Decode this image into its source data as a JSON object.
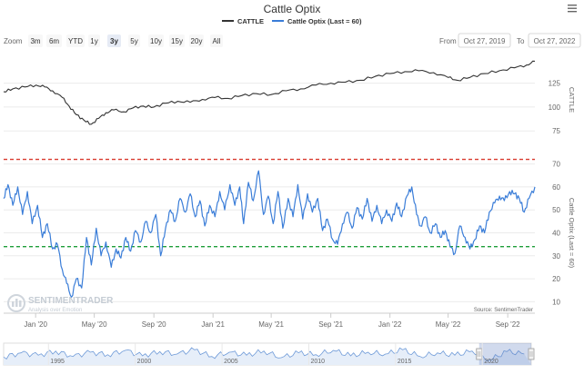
{
  "chart_data": {
    "type": "line",
    "title": "Cattle Optix",
    "legend": [
      {
        "name": "CATTLE",
        "color": "#333333"
      },
      {
        "name": "Cattle Optix (Last = 60)",
        "color": "#3a7dd8"
      }
    ],
    "zoom": {
      "label": "Zoom",
      "buttons": [
        "3m",
        "6m",
        "YTD",
        "1y",
        "3y",
        "5y",
        "10y",
        "15y",
        "20y",
        "All"
      ],
      "selected": "3y"
    },
    "range": {
      "from_label": "From",
      "from": "Oct 27, 2019",
      "to_label": "To",
      "to": "Oct 27, 2022"
    },
    "menu_icon": "hamburger-menu-icon",
    "x_ticks": [
      "Jan '20",
      "May '20",
      "Sep '20",
      "Jan '21",
      "May '21",
      "Sep '21",
      "Jan '22",
      "May '22",
      "Sep '22"
    ],
    "panels": [
      {
        "name": "CATTLE",
        "ylabel": "CATTLE",
        "yticks": [
          75,
          100,
          125
        ],
        "ylim": [
          60,
          155
        ],
        "color": "#333333",
        "series": [
          {
            "x": "2019-10-27",
            "y": 116
          },
          {
            "x": "2019-11-15",
            "y": 119
          },
          {
            "x": "2019-12-10",
            "y": 121
          },
          {
            "x": "2020-01-02",
            "y": 123
          },
          {
            "x": "2020-01-20",
            "y": 121
          },
          {
            "x": "2020-02-05",
            "y": 117
          },
          {
            "x": "2020-02-25",
            "y": 110
          },
          {
            "x": "2020-03-10",
            "y": 101
          },
          {
            "x": "2020-03-25",
            "y": 92
          },
          {
            "x": "2020-04-10",
            "y": 86
          },
          {
            "x": "2020-04-25",
            "y": 82
          },
          {
            "x": "2020-05-10",
            "y": 88
          },
          {
            "x": "2020-05-25",
            "y": 94
          },
          {
            "x": "2020-06-10",
            "y": 97
          },
          {
            "x": "2020-07-01",
            "y": 95
          },
          {
            "x": "2020-07-20",
            "y": 99
          },
          {
            "x": "2020-08-10",
            "y": 101
          },
          {
            "x": "2020-09-01",
            "y": 100
          },
          {
            "x": "2020-09-25",
            "y": 104
          },
          {
            "x": "2020-10-20",
            "y": 106
          },
          {
            "x": "2020-11-15",
            "y": 105
          },
          {
            "x": "2020-12-10",
            "y": 108
          },
          {
            "x": "2021-01-05",
            "y": 110
          },
          {
            "x": "2021-02-01",
            "y": 109
          },
          {
            "x": "2021-03-01",
            "y": 112
          },
          {
            "x": "2021-04-01",
            "y": 114
          },
          {
            "x": "2021-05-01",
            "y": 113
          },
          {
            "x": "2021-06-01",
            "y": 117
          },
          {
            "x": "2021-07-01",
            "y": 119
          },
          {
            "x": "2021-08-01",
            "y": 123
          },
          {
            "x": "2021-09-01",
            "y": 125
          },
          {
            "x": "2021-10-01",
            "y": 126
          },
          {
            "x": "2021-11-01",
            "y": 128
          },
          {
            "x": "2021-12-01",
            "y": 132
          },
          {
            "x": "2022-01-01",
            "y": 135
          },
          {
            "x": "2022-02-01",
            "y": 137
          },
          {
            "x": "2022-03-01",
            "y": 138
          },
          {
            "x": "2022-04-01",
            "y": 136
          },
          {
            "x": "2022-05-01",
            "y": 131
          },
          {
            "x": "2022-05-20",
            "y": 128
          },
          {
            "x": "2022-06-15",
            "y": 131
          },
          {
            "x": "2022-07-15",
            "y": 135
          },
          {
            "x": "2022-08-15",
            "y": 138
          },
          {
            "x": "2022-09-15",
            "y": 141
          },
          {
            "x": "2022-10-10",
            "y": 144
          },
          {
            "x": "2022-10-27",
            "y": 148
          }
        ]
      },
      {
        "name": "Cattle Optix (Last = 60)",
        "ylabel": "Cattle Optix (Last = 60)",
        "yticks": [
          10,
          20,
          30,
          40,
          50,
          60,
          70
        ],
        "ylim": [
          5,
          75
        ],
        "color": "#3a7dd8",
        "reference_lines": [
          {
            "y": 72,
            "color": "#d9382c",
            "style": "dashed"
          },
          {
            "y": 34,
            "color": "#1e9e3a",
            "style": "dashed"
          }
        ],
        "series": [
          {
            "x": "2019-10-27",
            "y": 55
          },
          {
            "x": "2019-11-05",
            "y": 61
          },
          {
            "x": "2019-11-15",
            "y": 52
          },
          {
            "x": "2019-11-25",
            "y": 60
          },
          {
            "x": "2019-12-05",
            "y": 48
          },
          {
            "x": "2019-12-15",
            "y": 58
          },
          {
            "x": "2019-12-25",
            "y": 44
          },
          {
            "x": "2020-01-05",
            "y": 52
          },
          {
            "x": "2020-01-15",
            "y": 38
          },
          {
            "x": "2020-01-25",
            "y": 44
          },
          {
            "x": "2020-02-05",
            "y": 33
          },
          {
            "x": "2020-02-15",
            "y": 35
          },
          {
            "x": "2020-02-25",
            "y": 24
          },
          {
            "x": "2020-03-05",
            "y": 18
          },
          {
            "x": "2020-03-15",
            "y": 12
          },
          {
            "x": "2020-03-25",
            "y": 20
          },
          {
            "x": "2020-04-05",
            "y": 16
          },
          {
            "x": "2020-04-15",
            "y": 38
          },
          {
            "x": "2020-04-25",
            "y": 26
          },
          {
            "x": "2020-05-05",
            "y": 42
          },
          {
            "x": "2020-05-15",
            "y": 30
          },
          {
            "x": "2020-05-25",
            "y": 36
          },
          {
            "x": "2020-06-05",
            "y": 25
          },
          {
            "x": "2020-06-15",
            "y": 33
          },
          {
            "x": "2020-06-25",
            "y": 29
          },
          {
            "x": "2020-07-05",
            "y": 38
          },
          {
            "x": "2020-07-15",
            "y": 32
          },
          {
            "x": "2020-07-25",
            "y": 41
          },
          {
            "x": "2020-08-05",
            "y": 36
          },
          {
            "x": "2020-08-15",
            "y": 45
          },
          {
            "x": "2020-08-25",
            "y": 40
          },
          {
            "x": "2020-09-05",
            "y": 48
          },
          {
            "x": "2020-09-15",
            "y": 30
          },
          {
            "x": "2020-09-25",
            "y": 42
          },
          {
            "x": "2020-10-05",
            "y": 50
          },
          {
            "x": "2020-10-15",
            "y": 45
          },
          {
            "x": "2020-10-25",
            "y": 55
          },
          {
            "x": "2020-11-05",
            "y": 49
          },
          {
            "x": "2020-11-15",
            "y": 57
          },
          {
            "x": "2020-11-25",
            "y": 47
          },
          {
            "x": "2020-12-05",
            "y": 54
          },
          {
            "x": "2020-12-15",
            "y": 43
          },
          {
            "x": "2020-12-25",
            "y": 52
          },
          {
            "x": "2021-01-05",
            "y": 47
          },
          {
            "x": "2021-01-15",
            "y": 58
          },
          {
            "x": "2021-01-25",
            "y": 50
          },
          {
            "x": "2021-02-05",
            "y": 61
          },
          {
            "x": "2021-02-15",
            "y": 52
          },
          {
            "x": "2021-02-25",
            "y": 60
          },
          {
            "x": "2021-03-05",
            "y": 44
          },
          {
            "x": "2021-03-15",
            "y": 62
          },
          {
            "x": "2021-03-25",
            "y": 54
          },
          {
            "x": "2021-04-05",
            "y": 67
          },
          {
            "x": "2021-04-15",
            "y": 48
          },
          {
            "x": "2021-04-25",
            "y": 56
          },
          {
            "x": "2021-05-05",
            "y": 44
          },
          {
            "x": "2021-05-15",
            "y": 58
          },
          {
            "x": "2021-05-25",
            "y": 42
          },
          {
            "x": "2021-06-05",
            "y": 55
          },
          {
            "x": "2021-06-15",
            "y": 47
          },
          {
            "x": "2021-06-25",
            "y": 61
          },
          {
            "x": "2021-07-05",
            "y": 46
          },
          {
            "x": "2021-07-15",
            "y": 57
          },
          {
            "x": "2021-07-25",
            "y": 49
          },
          {
            "x": "2021-08-05",
            "y": 55
          },
          {
            "x": "2021-08-15",
            "y": 41
          },
          {
            "x": "2021-08-25",
            "y": 46
          },
          {
            "x": "2021-09-05",
            "y": 37
          },
          {
            "x": "2021-09-15",
            "y": 35
          },
          {
            "x": "2021-09-25",
            "y": 44
          },
          {
            "x": "2021-10-05",
            "y": 49
          },
          {
            "x": "2021-10-15",
            "y": 42
          },
          {
            "x": "2021-10-25",
            "y": 51
          },
          {
            "x": "2021-11-05",
            "y": 46
          },
          {
            "x": "2021-11-15",
            "y": 55
          },
          {
            "x": "2021-11-25",
            "y": 45
          },
          {
            "x": "2021-12-05",
            "y": 52
          },
          {
            "x": "2021-12-15",
            "y": 44
          },
          {
            "x": "2021-12-25",
            "y": 50
          },
          {
            "x": "2022-01-05",
            "y": 45
          },
          {
            "x": "2022-01-15",
            "y": 53
          },
          {
            "x": "2022-01-25",
            "y": 47
          },
          {
            "x": "2022-02-05",
            "y": 56
          },
          {
            "x": "2022-02-15",
            "y": 60
          },
          {
            "x": "2022-02-25",
            "y": 48
          },
          {
            "x": "2022-03-05",
            "y": 43
          },
          {
            "x": "2022-03-15",
            "y": 47
          },
          {
            "x": "2022-03-25",
            "y": 40
          },
          {
            "x": "2022-04-05",
            "y": 44
          },
          {
            "x": "2022-04-15",
            "y": 38
          },
          {
            "x": "2022-04-25",
            "y": 41
          },
          {
            "x": "2022-05-05",
            "y": 34
          },
          {
            "x": "2022-05-15",
            "y": 31
          },
          {
            "x": "2022-05-25",
            "y": 43
          },
          {
            "x": "2022-06-05",
            "y": 38
          },
          {
            "x": "2022-06-15",
            "y": 33
          },
          {
            "x": "2022-06-25",
            "y": 37
          },
          {
            "x": "2022-07-05",
            "y": 43
          },
          {
            "x": "2022-07-15",
            "y": 40
          },
          {
            "x": "2022-07-25",
            "y": 49
          },
          {
            "x": "2022-08-05",
            "y": 53
          },
          {
            "x": "2022-08-15",
            "y": 56
          },
          {
            "x": "2022-08-25",
            "y": 54
          },
          {
            "x": "2022-09-05",
            "y": 58
          },
          {
            "x": "2022-09-15",
            "y": 57
          },
          {
            "x": "2022-09-25",
            "y": 55
          },
          {
            "x": "2022-10-05",
            "y": 49
          },
          {
            "x": "2022-10-15",
            "y": 55
          },
          {
            "x": "2022-10-27",
            "y": 60
          }
        ]
      }
    ],
    "navigator": {
      "ticks": [
        "1995",
        "2000",
        "2005",
        "2010",
        "2015",
        "2020"
      ],
      "series": [
        {
          "x": "1992-06-01",
          "y": 45
        },
        {
          "x": "1993-06-01",
          "y": 52
        },
        {
          "x": "1994-06-01",
          "y": 48
        },
        {
          "x": "1995-06-01",
          "y": 55
        },
        {
          "x": "1996-06-01",
          "y": 46
        },
        {
          "x": "1997-06-01",
          "y": 53
        },
        {
          "x": "1998-06-01",
          "y": 49
        },
        {
          "x": "1999-06-01",
          "y": 56
        },
        {
          "x": "2000-06-01",
          "y": 47
        },
        {
          "x": "2001-06-01",
          "y": 54
        },
        {
          "x": "2002-06-01",
          "y": 50
        },
        {
          "x": "2003-06-01",
          "y": 57
        },
        {
          "x": "2004-06-01",
          "y": 46
        },
        {
          "x": "2005-06-01",
          "y": 53
        },
        {
          "x": "2006-06-01",
          "y": 48
        },
        {
          "x": "2007-06-01",
          "y": 55
        },
        {
          "x": "2008-06-01",
          "y": 44
        },
        {
          "x": "2009-06-01",
          "y": 52
        },
        {
          "x": "2010-06-01",
          "y": 49
        },
        {
          "x": "2011-06-01",
          "y": 56
        },
        {
          "x": "2012-06-01",
          "y": 47
        },
        {
          "x": "2013-06-01",
          "y": 53
        },
        {
          "x": "2014-06-01",
          "y": 50
        },
        {
          "x": "2015-06-01",
          "y": 57
        },
        {
          "x": "2016-06-01",
          "y": 46
        },
        {
          "x": "2017-06-01",
          "y": 52
        },
        {
          "x": "2018-06-01",
          "y": 48
        },
        {
          "x": "2019-06-01",
          "y": 55
        },
        {
          "x": "2020-06-01",
          "y": 40
        },
        {
          "x": "2021-06-01",
          "y": 54
        },
        {
          "x": "2022-06-01",
          "y": 50
        }
      ]
    },
    "watermark": {
      "brand": "SENTIMENTRADER",
      "tagline": "Analysis over Emotion"
    },
    "source": "Source: SentimenTrader"
  }
}
